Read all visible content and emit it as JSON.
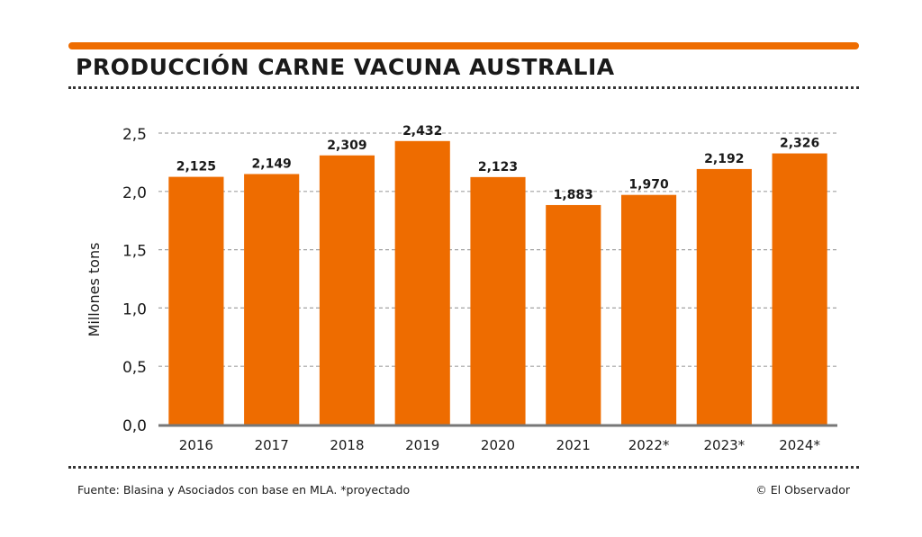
{
  "header": {
    "title": "PRODUCCIÓN CARNE VACUNA AUSTRALIA"
  },
  "footer": {
    "source": "Fuente: Blasina y Asociados con base en MLA. *proyectado",
    "credit": "© El Observador"
  },
  "colors": {
    "accent": "#ee6c00",
    "gridline": "#a3a3a3",
    "baseline": "#777777",
    "text": "#1a1a1a"
  },
  "chart_data": {
    "type": "bar",
    "title": "PRODUCCIÓN CARNE VACUNA AUSTRALIA",
    "xlabel": "",
    "ylabel": "Millones tons",
    "ylim": [
      0,
      2.5
    ],
    "yticks": [
      0,
      0.5,
      1.0,
      1.5,
      2.0,
      2.5
    ],
    "ytick_labels": [
      "0,0",
      "0,5",
      "1,0",
      "1,5",
      "2,0",
      "2,5"
    ],
    "grid": true,
    "categories": [
      "2016",
      "2017",
      "2018",
      "2019",
      "2020",
      "2021",
      "2022*",
      "2023*",
      "2024*"
    ],
    "values": [
      2.125,
      2.149,
      2.309,
      2.432,
      2.123,
      1.883,
      1.97,
      2.192,
      2.326
    ],
    "data_labels": [
      "2,125",
      "2,149",
      "2,309",
      "2,432",
      "2,123",
      "1,883",
      "1,970",
      "2,192",
      "2,326"
    ]
  }
}
